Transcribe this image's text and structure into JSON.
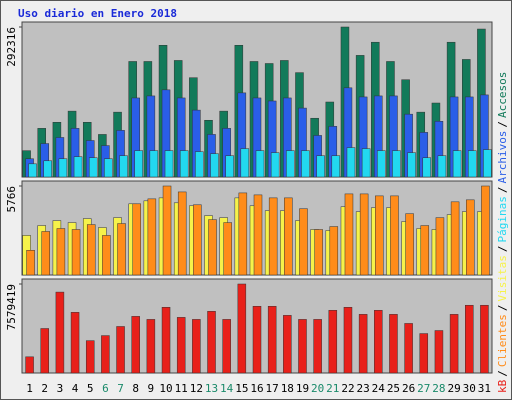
{
  "chart_data": [
    {
      "type": "bar",
      "title": "Uso diario en Enero 2018",
      "ylim": [
        0,
        292316
      ],
      "yticks": [
        292316
      ],
      "series": [
        {
          "name": "Accesos",
          "color": "#127a5a",
          "values": [
            51350,
            94800,
            106650,
            128375,
            106650,
            82950,
            126400,
            225150,
            225150,
            256750,
            227125,
            193550,
            110600,
            128375,
            256750,
            225150,
            221200,
            227125,
            203425,
            114550,
            146150,
            292316,
            237000,
            262675,
            225150,
            189600,
            126400,
            144175,
            262675,
            229100,
            288350
          ]
        },
        {
          "name": "Archivos",
          "color": "#2a5ee8",
          "values": [
            35550,
            65175,
            77025,
            94800,
            71100,
            61225,
            90850,
            154050,
            158000,
            169850,
            154050,
            130350,
            82950,
            94800,
            163925,
            154050,
            148125,
            154050,
            134300,
            80975,
            98750,
            173800,
            156025,
            158000,
            158000,
            122450,
            86900,
            108625,
            156025,
            156025,
            159975
          ]
        },
        {
          "name": "Páginas",
          "color": "#22d8f0",
          "values": [
            25675,
            31600,
            35550,
            39500,
            37525,
            35550,
            41475,
            51350,
            51350,
            51350,
            51350,
            49375,
            45425,
            41475,
            55300,
            51350,
            47400,
            51350,
            51350,
            41475,
            41475,
            57275,
            55300,
            51350,
            51350,
            47400,
            37525,
            41475,
            51350,
            51350,
            53325
          ]
        }
      ]
    },
    {
      "type": "bar",
      "ylim": [
        0,
        5766
      ],
      "yticks": [
        5766
      ],
      "series": [
        {
          "name": "Visitas",
          "color": "#f6f24a",
          "values": [
            2563,
            3203,
            3524,
            3396,
            3652,
            3075,
            3716,
            4613,
            4805,
            4997,
            4677,
            4485,
            3844,
            3716,
            4997,
            4485,
            4164,
            4164,
            3524,
            2947,
            2883,
            4421,
            4100,
            4357,
            4357,
            3460,
            3011,
            2947,
            3908,
            4100,
            4100
          ]
        },
        {
          "name": "Clientes",
          "color": "#ff8c1a",
          "values": [
            1602,
            2819,
            3011,
            2947,
            3268,
            2563,
            3332,
            4613,
            4933,
            5766,
            5382,
            4549,
            3588,
            3396,
            5318,
            5190,
            4997,
            4997,
            4293,
            2947,
            3139,
            5254,
            5254,
            5126,
            5126,
            3972,
            3203,
            3716,
            4741,
            4869,
            5766
          ]
        }
      ]
    },
    {
      "type": "bar",
      "ylim": [
        0,
        7579419
      ],
      "yticks": [
        7579419
      ],
      "categories": [
        "1",
        "2",
        "3",
        "4",
        "5",
        "6",
        "7",
        "8",
        "9",
        "10",
        "11",
        "12",
        "13",
        "14",
        "15",
        "16",
        "17",
        "18",
        "19",
        "20",
        "21",
        "22",
        "23",
        "24",
        "25",
        "26",
        "27",
        "28",
        "29",
        "30",
        "31"
      ],
      "category_colors": [
        "#000",
        "#000",
        "#000",
        "#000",
        "#000",
        "#1a8a6a",
        "#1a8a6a",
        "#000",
        "#000",
        "#000",
        "#000",
        "#000",
        "#1a8a6a",
        "#1a8a6a",
        "#000",
        "#000",
        "#000",
        "#000",
        "#000",
        "#1a8a6a",
        "#1a8a6a",
        "#000",
        "#000",
        "#000",
        "#000",
        "#000",
        "#1a8a6a",
        "#1a8a6a",
        "#000",
        "#000",
        "#000"
      ],
      "series": [
        {
          "name": "kB",
          "color": "#e8201a",
          "values": [
            1378080,
            3789720,
            6890400,
            5167800,
            2756160,
            3186810,
            3961980,
            4823280,
            4564890,
            5598450,
            4737150,
            4564890,
            5253930,
            4564890,
            7579419,
            5684580,
            5684580,
            4909410,
            4564890,
            4564890,
            5340060,
            5598450,
            4995540,
            5340060,
            4995540,
            4220370,
            3359070,
            3617460,
            4995540,
            5770710,
            5770710
          ]
        }
      ]
    }
  ],
  "legend_separator": "/"
}
